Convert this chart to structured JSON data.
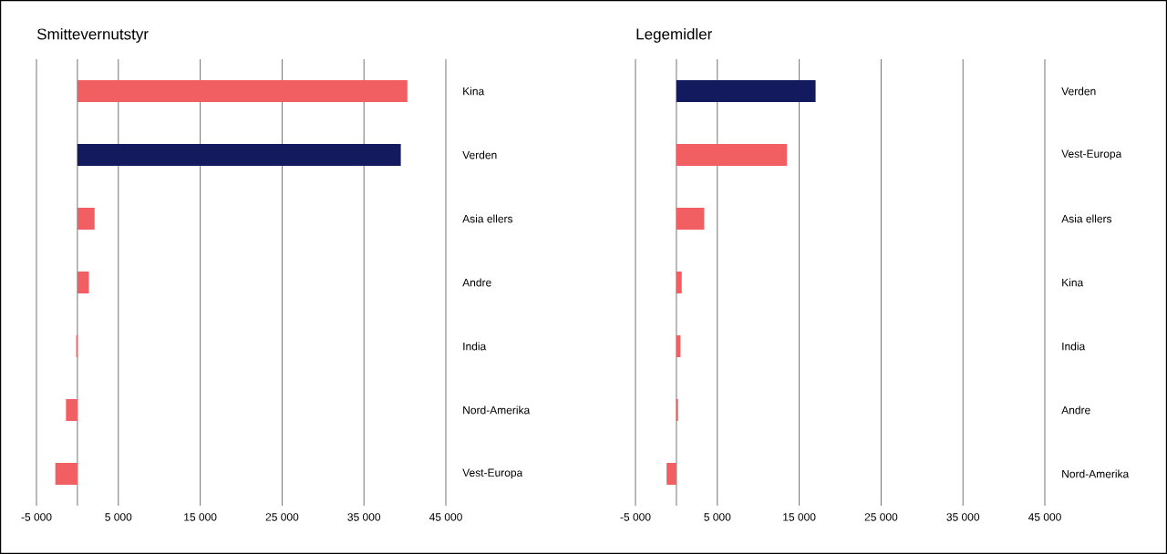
{
  "chart_data": [
    {
      "type": "bar",
      "orientation": "horizontal",
      "title": "Smittevernutstyr",
      "categories": [
        "Kina",
        "Verden",
        "Asia ellers",
        "Andre",
        "India",
        "Nord-Amerika",
        "Vest-Europa"
      ],
      "values": [
        40300,
        39500,
        2100,
        1400,
        -150,
        -1400,
        -2700
      ],
      "colors": [
        "#f25f63",
        "#141a5e",
        "#f25f63",
        "#f25f63",
        "#f25f63",
        "#f25f63",
        "#f25f63"
      ],
      "xlim": [
        -5000,
        45000
      ],
      "xticks": [
        {
          "value": -5000,
          "label": "-5 000"
        },
        {
          "value": 0,
          "label": null
        },
        {
          "value": 5000,
          "label": "5 000"
        },
        {
          "value": 15000,
          "label": "15 000"
        },
        {
          "value": 25000,
          "label": "25 000"
        },
        {
          "value": 35000,
          "label": "35 000"
        },
        {
          "value": 45000,
          "label": "45 000"
        }
      ],
      "grid": "x"
    },
    {
      "type": "bar",
      "orientation": "horizontal",
      "title": "Legemidler",
      "categories": [
        "Verden",
        "Vest-Europa",
        "Asia ellers",
        "Kina",
        "India",
        "Andre",
        "Nord-Amerika"
      ],
      "values": [
        17000,
        13500,
        3400,
        650,
        500,
        200,
        -1200
      ],
      "colors": [
        "#141a5e",
        "#f25f63",
        "#f25f63",
        "#f25f63",
        "#f25f63",
        "#f25f63",
        "#f25f63"
      ],
      "xlim": [
        -5000,
        45000
      ],
      "xticks": [
        {
          "value": -5000,
          "label": "-5 000"
        },
        {
          "value": 0,
          "label": null
        },
        {
          "value": 5000,
          "label": "5 000"
        },
        {
          "value": 15000,
          "label": "15 000"
        },
        {
          "value": 25000,
          "label": "25 000"
        },
        {
          "value": 35000,
          "label": "35 000"
        },
        {
          "value": 45000,
          "label": "45 000"
        }
      ],
      "grid": "x"
    }
  ]
}
